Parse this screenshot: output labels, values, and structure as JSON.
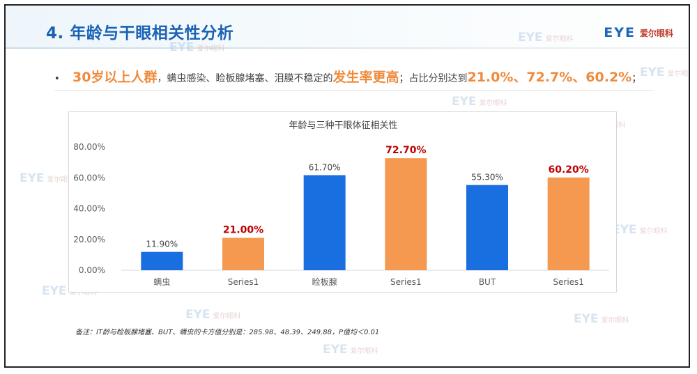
{
  "slide": {
    "title": "4. 年龄与干眼相关性分析",
    "logo": {
      "mark": "EYE",
      "text": "爱尔眼科"
    },
    "bullet": {
      "part1": "30岁以上人群",
      "part2": "，螨虫感染、睑板腺堵塞、泪膜不稳定的",
      "part3": "发生率更高",
      "part4": "；占比分别达到",
      "part5": "21.0%、72.7%、60.2%",
      "part6": "；"
    },
    "note": "备注：IT龄与睑板腺堵塞、BUT、螨虫的卡方值分别是：285.98、48.39、249.88，P值均＜0.01",
    "watermark": {
      "mark": "EYE",
      "text": "爱尔眼科"
    }
  },
  "chart_data": {
    "type": "bar",
    "title": "年龄与三种干眼体征相关性",
    "categories": [
      "螨虫",
      "Series1",
      "睑板腺",
      "Series1",
      "BUT",
      "Series1"
    ],
    "values": [
      11.9,
      21.0,
      61.7,
      72.7,
      55.3,
      60.2
    ],
    "value_labels": [
      "11.90%",
      "21.00%",
      "61.70%",
      "72.70%",
      "55.30%",
      "60.20%"
    ],
    "colors": [
      "#1a6fe0",
      "#f4994f",
      "#1a6fe0",
      "#f4994f",
      "#1a6fe0",
      "#f4994f"
    ],
    "label_colors": [
      "#444444",
      "#c00000",
      "#444444",
      "#c00000",
      "#444444",
      "#c00000"
    ],
    "ylim": [
      0,
      80
    ],
    "yticks": [
      "0.00%",
      "20.00%",
      "40.00%",
      "60.00%",
      "80.00%"
    ],
    "ytick_values": [
      0,
      20,
      40,
      60,
      80
    ],
    "grid": false,
    "legend": "none"
  }
}
